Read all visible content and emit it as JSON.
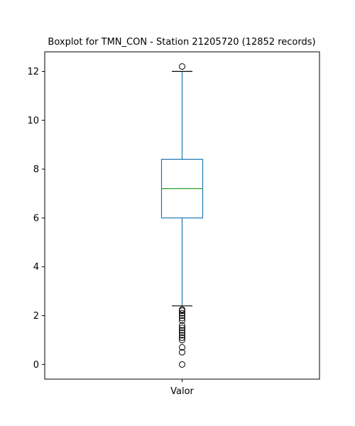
{
  "chart_data": {
    "type": "boxplot",
    "title": "Boxplot for TMN_CON - Station 21205720 (12852 records)",
    "categories": [
      "Valor"
    ],
    "ylim": [
      -0.6,
      12.8
    ],
    "yticks": [
      0,
      2,
      4,
      6,
      8,
      10,
      12
    ],
    "grid": false,
    "box": {
      "q1": 6.0,
      "median": 7.2,
      "q3": 8.4,
      "whisker_low": 2.4,
      "whisker_high": 12.0
    },
    "outliers": [
      0.0,
      0.5,
      0.7,
      1.0,
      1.1,
      1.2,
      1.3,
      1.4,
      1.5,
      1.6,
      1.8,
      1.9,
      2.0,
      2.1,
      2.2,
      2.25,
      12.2
    ],
    "colors": {
      "box": "#1f77b4",
      "median": "#2ca02c",
      "caps": "#000000",
      "outlier": "#000000"
    }
  }
}
